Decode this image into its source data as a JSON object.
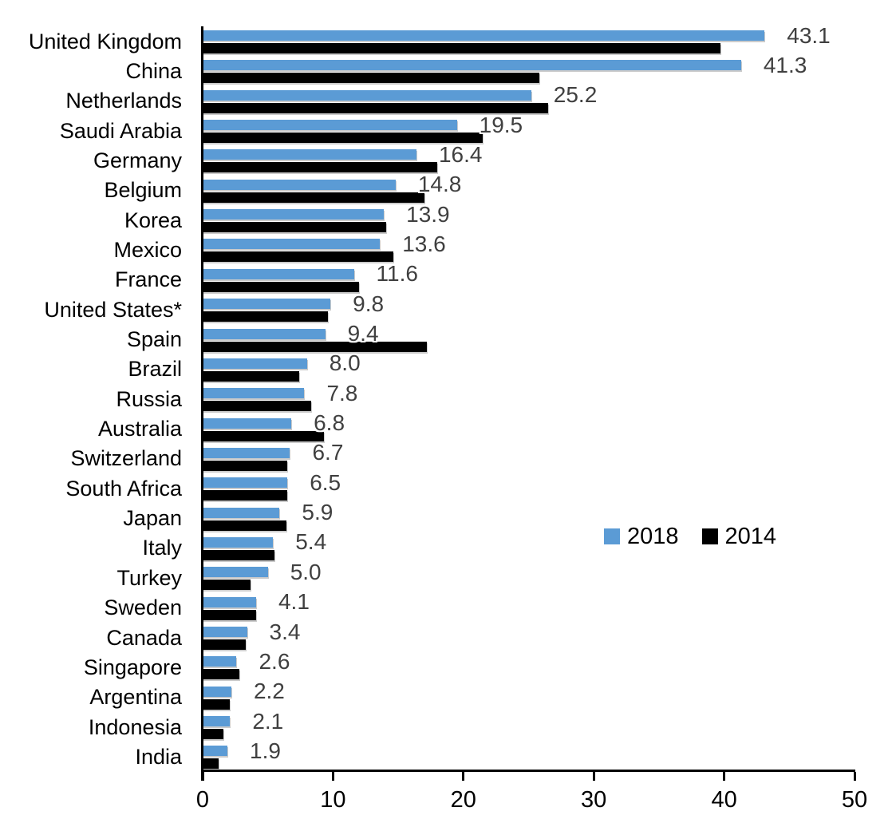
{
  "chart_data": {
    "type": "bar",
    "orientation": "horizontal",
    "title": "",
    "xlabel": "",
    "ylabel": "",
    "categories": [
      "United Kingdom",
      "China",
      "Netherlands",
      "Saudi Arabia",
      "Germany",
      "Belgium",
      "Korea",
      "Mexico",
      "France",
      "United States*",
      "Spain",
      "Brazil",
      "Russia",
      "Australia",
      "Switzerland",
      "South Africa",
      "Japan",
      "Italy",
      "Turkey",
      "Sweden",
      "Canada",
      "Singapore",
      "Argentina",
      "Indonesia",
      "India"
    ],
    "series": [
      {
        "name": "2018",
        "color": "#5B9BD5",
        "values": [
          43.1,
          41.3,
          25.2,
          19.5,
          16.4,
          14.8,
          13.9,
          13.6,
          11.6,
          9.8,
          9.4,
          8.0,
          7.8,
          6.8,
          6.7,
          6.5,
          5.9,
          5.4,
          5.0,
          4.1,
          3.4,
          2.6,
          2.2,
          2.1,
          1.9
        ],
        "value_labels": [
          "43.1",
          "41.3",
          "25.2",
          "19.5",
          "16.4",
          "14.8",
          "13.9",
          "13.6",
          "11.6",
          "9.8",
          "9.4",
          "8.0",
          "7.8",
          "6.8",
          "6.7",
          "6.5",
          "5.9",
          "5.4",
          "5.0",
          "4.1",
          "3.4",
          "2.6",
          "2.2",
          "2.1",
          "1.9"
        ]
      },
      {
        "name": "2014",
        "color": "#000000",
        "values": [
          39.7,
          25.8,
          26.5,
          21.5,
          18.0,
          17.0,
          14.1,
          14.6,
          12.0,
          9.6,
          17.2,
          7.4,
          8.3,
          9.3,
          6.5,
          6.5,
          6.4,
          5.5,
          3.7,
          4.1,
          3.3,
          2.8,
          2.1,
          1.6,
          1.2
        ]
      }
    ],
    "xlim": [
      0,
      50
    ],
    "xticks": [
      0,
      10,
      20,
      30,
      40,
      50
    ],
    "xtick_labels": [
      "0",
      "10",
      "20",
      "30",
      "40",
      "50"
    ],
    "grid": "off",
    "legend_position": "middle-right",
    "value_label_color": "#404040",
    "value_labels_series": "2018"
  }
}
